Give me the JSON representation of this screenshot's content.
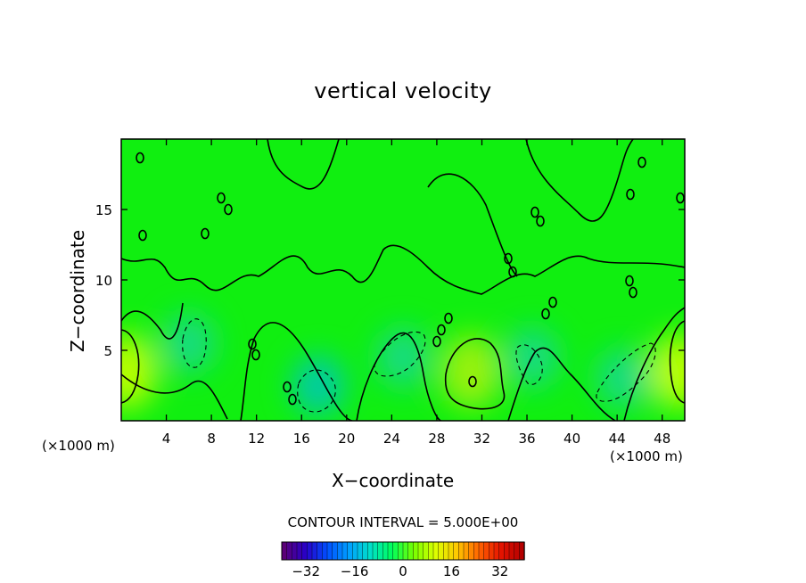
{
  "chart_data": {
    "type": "contour",
    "title": "vertical velocity",
    "xlabel": "X−coordinate",
    "ylabel": "Z−coordinate",
    "x_unit_label": "(×1000 m)",
    "z_unit_label": "(×1000 m)",
    "xlim": [
      0,
      50
    ],
    "ylim": [
      0,
      20
    ],
    "x_ticks": [
      4,
      8,
      12,
      16,
      20,
      24,
      28,
      32,
      36,
      40,
      44,
      48
    ],
    "y_ticks": [
      5,
      10,
      15
    ],
    "contour_interval_text": "CONTOUR INTERVAL = 5.000E+00",
    "contour_interval": 5.0,
    "colorbar": {
      "range": [
        -40,
        40
      ],
      "ticks": [
        -32,
        -16,
        0,
        16,
        32
      ],
      "colors": [
        "#5a0078",
        "#2800c8",
        "#0050ff",
        "#00a0ff",
        "#00e0c8",
        "#00ff5a",
        "#78ff00",
        "#dcff00",
        "#ffc800",
        "#ff6400",
        "#e61400",
        "#b40000"
      ]
    },
    "features": [
      {
        "kind": "updraft",
        "x": 0.5,
        "z": 3.5,
        "value": 10
      },
      {
        "kind": "updraft",
        "x": 31,
        "z": 3.5,
        "value": 8
      },
      {
        "kind": "updraft",
        "x": 49.5,
        "z": 3.5,
        "value": 12
      },
      {
        "kind": "downdraft",
        "x": 6,
        "z": 5.5,
        "value": -7
      },
      {
        "kind": "downdraft",
        "x": 17.5,
        "z": 2.5,
        "value": -8
      },
      {
        "kind": "downdraft",
        "x": 25,
        "z": 4.5,
        "value": -6
      },
      {
        "kind": "downdraft",
        "x": 36.5,
        "z": 4.5,
        "value": -6
      },
      {
        "kind": "downdraft",
        "x": 44.5,
        "z": 3,
        "value": -6
      }
    ]
  }
}
